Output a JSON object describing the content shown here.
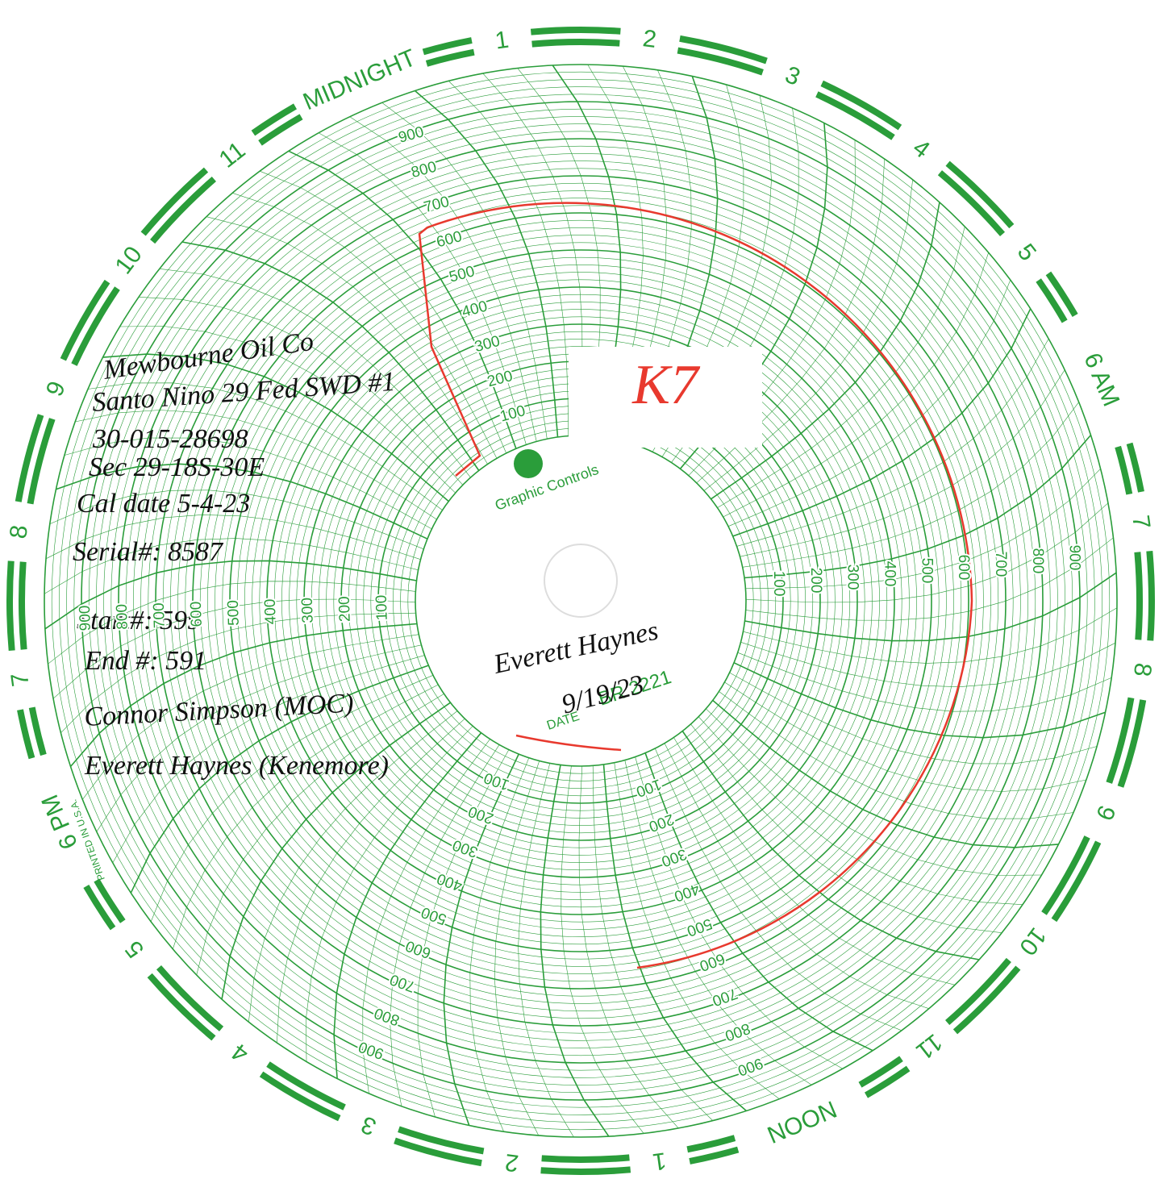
{
  "chart_paper": {
    "hour_labels": [
      "MIDNIGHT",
      "1",
      "2",
      "3",
      "4",
      "5",
      "6 AM",
      "7",
      "8",
      "9",
      "10",
      "11",
      "NOON",
      "1",
      "2",
      "3",
      "4",
      "5",
      "6 PM",
      "7",
      "8",
      "9",
      "10",
      "11"
    ],
    "scale_labels": [
      "100",
      "200",
      "300",
      "400",
      "500",
      "600",
      "700",
      "800",
      "900"
    ],
    "logo": "Graphic Controls",
    "date_label": "DATE",
    "chart_number": "BR 2221",
    "printed": "PRINTED IN U.S.A."
  },
  "handwriting": {
    "notes": [
      "Mewbourne Oil Co",
      "Santo Nino 29 Fed SWD #1",
      "30-015-28698",
      "Sec 29-18S-30E",
      "Cal date 5-4-23",
      "Serial#: 8587",
      "Start#: 599",
      "End #: 591",
      "Connor Simpson (MOC)",
      "Everett Haynes (Kenemore)"
    ],
    "signature": "Everett Haynes",
    "date": "9/19/23",
    "stamp": "K7"
  }
}
